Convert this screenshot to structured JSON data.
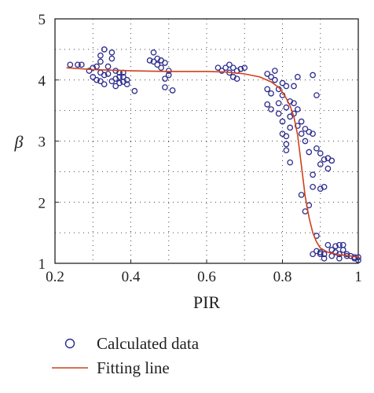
{
  "chart_data": {
    "type": "scatter",
    "title": "",
    "xlabel": "PIR",
    "ylabel": "β",
    "xlim": [
      0.2,
      1.0
    ],
    "ylim": [
      1,
      5
    ],
    "xticks": [
      0.2,
      0.4,
      0.6,
      0.8,
      1.0
    ],
    "xtick_labels": [
      "0.2",
      "0.4",
      "0.6",
      "0.8",
      "1"
    ],
    "yticks": [
      1,
      2,
      3,
      4,
      5
    ],
    "ytick_labels": [
      "1",
      "2",
      "3",
      "4",
      "5"
    ],
    "grid": true,
    "grid_style": "dotted",
    "legend_position": "below",
    "colors": {
      "scatter": "#2b2b8c",
      "line": "#d0401b"
    },
    "series": [
      {
        "name": "Calculated data",
        "kind": "scatter",
        "marker": "circle-open",
        "points": [
          [
            0.24,
            4.25
          ],
          [
            0.26,
            4.25
          ],
          [
            0.27,
            4.25
          ],
          [
            0.29,
            4.15
          ],
          [
            0.3,
            4.2
          ],
          [
            0.3,
            4.05
          ],
          [
            0.31,
            4.22
          ],
          [
            0.31,
            4.0
          ],
          [
            0.32,
            4.12
          ],
          [
            0.32,
            3.98
          ],
          [
            0.32,
            4.3
          ],
          [
            0.32,
            4.4
          ],
          [
            0.33,
            4.5
          ],
          [
            0.33,
            4.08
          ],
          [
            0.33,
            3.93
          ],
          [
            0.34,
            4.22
          ],
          [
            0.34,
            4.1
          ],
          [
            0.35,
            4.45
          ],
          [
            0.35,
            4.35
          ],
          [
            0.35,
            3.98
          ],
          [
            0.36,
            4.15
          ],
          [
            0.36,
            4.02
          ],
          [
            0.36,
            3.9
          ],
          [
            0.37,
            4.12
          ],
          [
            0.37,
            4.05
          ],
          [
            0.37,
            3.95
          ],
          [
            0.38,
            4.12
          ],
          [
            0.38,
            4.05
          ],
          [
            0.38,
            3.97
          ],
          [
            0.39,
            4.0
          ],
          [
            0.39,
            3.93
          ],
          [
            0.41,
            3.82
          ],
          [
            0.45,
            4.32
          ],
          [
            0.46,
            4.3
          ],
          [
            0.46,
            4.45
          ],
          [
            0.47,
            4.35
          ],
          [
            0.47,
            4.25
          ],
          [
            0.48,
            4.32
          ],
          [
            0.48,
            4.2
          ],
          [
            0.49,
            4.28
          ],
          [
            0.49,
            4.02
          ],
          [
            0.49,
            3.88
          ],
          [
            0.5,
            4.15
          ],
          [
            0.5,
            4.08
          ],
          [
            0.51,
            3.83
          ],
          [
            0.63,
            4.2
          ],
          [
            0.64,
            4.15
          ],
          [
            0.65,
            4.2
          ],
          [
            0.66,
            4.25
          ],
          [
            0.66,
            4.12
          ],
          [
            0.67,
            4.2
          ],
          [
            0.67,
            4.05
          ],
          [
            0.68,
            4.15
          ],
          [
            0.68,
            4.02
          ],
          [
            0.69,
            4.18
          ],
          [
            0.7,
            4.2
          ],
          [
            0.76,
            4.1
          ],
          [
            0.76,
            3.85
          ],
          [
            0.76,
            3.6
          ],
          [
            0.77,
            4.05
          ],
          [
            0.77,
            3.78
          ],
          [
            0.77,
            3.52
          ],
          [
            0.78,
            4.0
          ],
          [
            0.78,
            4.15
          ],
          [
            0.79,
            3.85
          ],
          [
            0.79,
            3.62
          ],
          [
            0.79,
            3.45
          ],
          [
            0.8,
            3.95
          ],
          [
            0.8,
            3.75
          ],
          [
            0.8,
            3.32
          ],
          [
            0.8,
            3.12
          ],
          [
            0.81,
            3.9
          ],
          [
            0.81,
            3.55
          ],
          [
            0.81,
            3.08
          ],
          [
            0.81,
            2.95
          ],
          [
            0.81,
            2.85
          ],
          [
            0.82,
            3.65
          ],
          [
            0.82,
            3.22
          ],
          [
            0.82,
            2.65
          ],
          [
            0.82,
            3.4
          ],
          [
            0.83,
            3.9
          ],
          [
            0.83,
            3.62
          ],
          [
            0.83,
            3.45
          ],
          [
            0.84,
            4.05
          ],
          [
            0.84,
            3.25
          ],
          [
            0.84,
            3.52
          ],
          [
            0.85,
            2.12
          ],
          [
            0.85,
            3.12
          ],
          [
            0.85,
            3.32
          ],
          [
            0.86,
            1.85
          ],
          [
            0.86,
            3.2
          ],
          [
            0.86,
            3.0
          ],
          [
            0.87,
            3.15
          ],
          [
            0.87,
            2.82
          ],
          [
            0.87,
            1.95
          ],
          [
            0.88,
            4.08
          ],
          [
            0.88,
            3.12
          ],
          [
            0.88,
            2.45
          ],
          [
            0.88,
            2.25
          ],
          [
            0.89,
            3.75
          ],
          [
            0.89,
            2.88
          ],
          [
            0.89,
            1.45
          ],
          [
            0.9,
            2.8
          ],
          [
            0.9,
            2.62
          ],
          [
            0.9,
            2.22
          ],
          [
            0.9,
            1.18
          ],
          [
            0.9,
            1.15
          ],
          [
            0.91,
            2.7
          ],
          [
            0.91,
            2.25
          ],
          [
            0.91,
            1.15
          ],
          [
            0.91,
            1.08
          ],
          [
            0.92,
            2.72
          ],
          [
            0.92,
            2.55
          ],
          [
            0.92,
            1.3
          ],
          [
            0.93,
            2.68
          ],
          [
            0.93,
            1.22
          ],
          [
            0.93,
            1.12
          ],
          [
            0.94,
            1.28
          ],
          [
            0.94,
            1.18
          ],
          [
            0.95,
            1.3
          ],
          [
            0.95,
            1.15
          ],
          [
            0.95,
            1.08
          ],
          [
            0.96,
            1.3
          ],
          [
            0.96,
            1.22
          ],
          [
            0.97,
            1.15
          ],
          [
            0.97,
            1.12
          ],
          [
            0.98,
            1.12
          ],
          [
            0.99,
            1.1
          ],
          [
            0.99,
            1.08
          ],
          [
            1.0,
            1.1
          ],
          [
            1.0,
            1.05
          ],
          [
            0.88,
            1.15
          ],
          [
            0.89,
            1.2
          ]
        ]
      },
      {
        "name": "Fitting line",
        "kind": "line",
        "points": [
          [
            0.23,
            4.2
          ],
          [
            0.3,
            4.17
          ],
          [
            0.4,
            4.15
          ],
          [
            0.5,
            4.14
          ],
          [
            0.6,
            4.14
          ],
          [
            0.65,
            4.13
          ],
          [
            0.7,
            4.1
          ],
          [
            0.74,
            4.05
          ],
          [
            0.77,
            3.97
          ],
          [
            0.79,
            3.88
          ],
          [
            0.8,
            3.8
          ],
          [
            0.81,
            3.7
          ],
          [
            0.82,
            3.58
          ],
          [
            0.83,
            3.4
          ],
          [
            0.84,
            3.1
          ],
          [
            0.85,
            2.6
          ],
          [
            0.86,
            2.1
          ],
          [
            0.87,
            1.75
          ],
          [
            0.88,
            1.5
          ],
          [
            0.89,
            1.35
          ],
          [
            0.9,
            1.25
          ],
          [
            0.92,
            1.18
          ],
          [
            0.95,
            1.14
          ],
          [
            0.98,
            1.12
          ],
          [
            1.0,
            1.1
          ]
        ]
      }
    ]
  }
}
